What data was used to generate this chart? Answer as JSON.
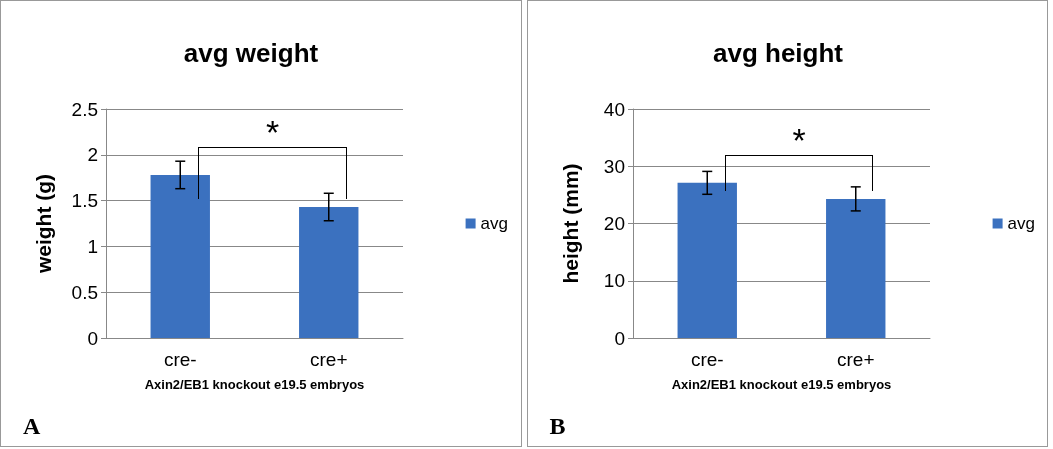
{
  "chart_data": [
    {
      "type": "bar",
      "title": "avg weight",
      "xlabel": "Axin2/EB1 knockout e19.5 embryos",
      "ylabel": "weight (g)",
      "categories": [
        "cre-",
        "cre+"
      ],
      "series": [
        {
          "name": "avg",
          "color": "#3b71bf",
          "values": [
            1.78,
            1.43
          ],
          "errors": [
            0.15,
            0.15
          ]
        }
      ],
      "ylim": [
        0,
        2.5
      ],
      "yticks": [
        0,
        0.5,
        1,
        1.5,
        2,
        2.5
      ],
      "grid": "y",
      "legend": "right",
      "annotations": [
        "A",
        "*"
      ]
    },
    {
      "type": "bar",
      "title": "avg height",
      "xlabel": "Axin2/EB1 knockout e19.5 embryos",
      "ylabel": "height (mm)",
      "categories": [
        "cre-",
        "cre+"
      ],
      "series": [
        {
          "name": "avg",
          "color": "#3b71bf",
          "values": [
            27.1,
            24.3
          ],
          "errors": [
            2,
            2.1
          ]
        }
      ],
      "ylim": [
        0,
        40
      ],
      "yticks": [
        0,
        10,
        20,
        30,
        40
      ],
      "grid": "y",
      "legend": "right",
      "annotations": [
        "B",
        "*"
      ]
    }
  ]
}
